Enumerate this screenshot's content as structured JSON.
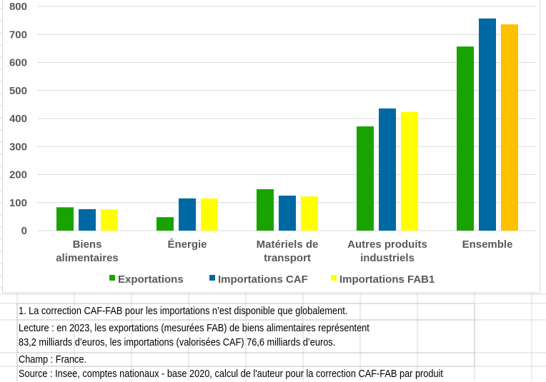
{
  "chart_data": {
    "type": "bar",
    "title": "",
    "xlabel": "",
    "ylabel": "",
    "ylim": [
      0,
      800
    ],
    "yticks": [
      "0",
      "100",
      "200",
      "300",
      "400",
      "500",
      "600",
      "700",
      "800"
    ],
    "grid": true,
    "legend_position": "bottom",
    "categories": [
      [
        "Biens",
        "alimentaires"
      ],
      [
        "Énergie"
      ],
      [
        "Matériels de",
        "transport"
      ],
      [
        "Autres produits",
        "industriels"
      ],
      [
        "Ensemble"
      ]
    ],
    "series": [
      {
        "name": "Exportations",
        "color": "#19A300",
        "values": [
          83.2,
          48,
          148,
          372,
          657
        ]
      },
      {
        "name": "Importations CAF",
        "color": "#0068A3",
        "values": [
          76.6,
          115,
          125,
          436,
          757
        ]
      },
      {
        "name": "Importations FAB1",
        "color": "#FFFF00",
        "values": [
          76,
          115,
          122,
          423,
          736
        ],
        "highlight": {
          "index": 4,
          "color": "#FFC000"
        }
      }
    ]
  },
  "notes": {
    "footnote": "1. La correction CAF-FAB pour les importations n’est disponible que globalement.",
    "lecture_1": "Lecture : en 2023, les exportations (mesurées FAB) de biens alimentaires représentent",
    "lecture_2": "83,2 milliards d’euros, les importations (valorisées CAF) 76,6 milliards d’euros.",
    "champ": "Champ : France.",
    "source": "Source : Insee, comptes nationaux - base 2020, calcul de l'auteur pour la correction CAF-FAB par produit"
  }
}
